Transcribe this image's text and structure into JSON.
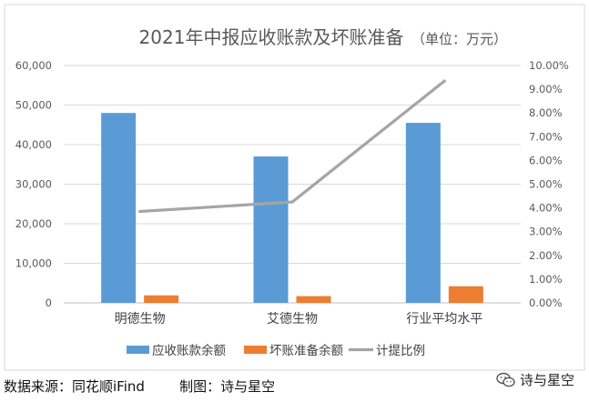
{
  "chart_data": {
    "type": "bar",
    "title": "2021年中报应收账款及坏账准备",
    "subtitle": "（单位：万元）",
    "categories": [
      "明德生物",
      "艾德生物",
      "行业平均水平"
    ],
    "series": [
      {
        "name": "应收账款余额",
        "type": "bar",
        "axis": "left",
        "color": "#5B9BD5",
        "values": [
          48000,
          37000,
          45500
        ]
      },
      {
        "name": "坏账准备余额",
        "type": "bar",
        "axis": "left",
        "color": "#ED7D31",
        "values": [
          1900,
          1700,
          4200
        ]
      },
      {
        "name": "计提比例",
        "type": "line",
        "axis": "right",
        "color": "#A5A5A5",
        "values": [
          3.85,
          4.25,
          9.35
        ]
      }
    ],
    "y_left": {
      "min": 0,
      "max": 60000,
      "ticks": [
        "0",
        "10,000",
        "20,000",
        "30,000",
        "40,000",
        "50,000",
        "60,000"
      ]
    },
    "y_right": {
      "min": 0,
      "max": 10,
      "ticks": [
        "0.00%",
        "1.00%",
        "2.00%",
        "3.00%",
        "4.00%",
        "5.00%",
        "6.00%",
        "7.00%",
        "8.00%",
        "9.00%",
        "10.00%"
      ]
    },
    "grid": true,
    "legend_position": "bottom"
  },
  "footer": {
    "source": "数据来源：同花顺iFind",
    "maker": "制图：诗与星空"
  },
  "watermark": {
    "text": "诗与星空",
    "icon": "wechat-icon"
  }
}
